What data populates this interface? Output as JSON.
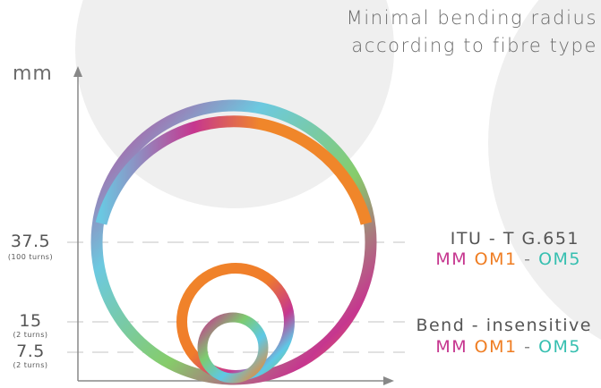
{
  "title": {
    "line1": "Minimal bending radius",
    "line2": "according to fibre type"
  },
  "axis": {
    "unit": "mm"
  },
  "ticks": [
    {
      "value": "37.5",
      "note": "(100 turns)"
    },
    {
      "value": "15",
      "note": "(2 turns)"
    },
    {
      "value": "7.5",
      "note": "(2 turns)"
    }
  ],
  "categories": [
    {
      "name": "ITU - T G.651",
      "mm": "MM",
      "om1": "OM1",
      "sep": "-",
      "om5": "OM5"
    },
    {
      "name": "Bend - insensitive",
      "mm": "MM",
      "om1": "OM1",
      "sep": "-",
      "om5": "OM5"
    }
  ],
  "colors": {
    "magenta": "#c6368f",
    "orange": "#f0862a",
    "cyan": "#5ec8e6",
    "green": "#7dcb6f",
    "axis": "#888888",
    "bg_circle": "#efefef"
  }
}
